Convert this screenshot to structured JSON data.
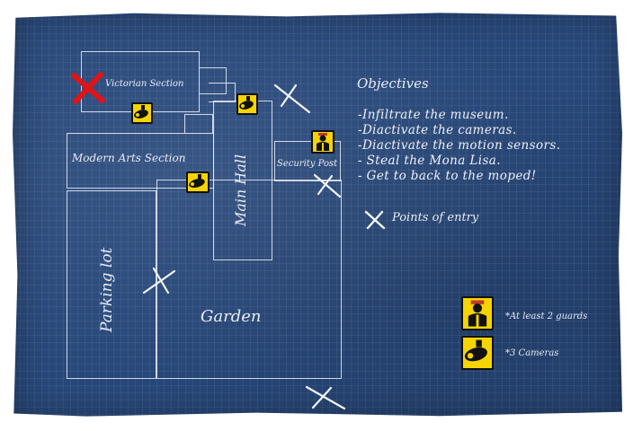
{
  "map": {
    "rooms": {
      "victorian": "Victorian Section",
      "modern": "Modern Arts Section",
      "main_hall": "Main Hall",
      "security": "Security Post",
      "parking": "Parking lot",
      "garden": "Garden"
    },
    "objectives": {
      "title": "Objectives",
      "items": [
        "-Infiltrate the museum.",
        "-Diactivate the cameras.",
        "-Diactivate the motion sensors.",
        "- Steal the Mona Lisa.",
        "- Get to back to the moped!"
      ]
    },
    "legend": {
      "entry": "Points of entry",
      "guards": "*At least 2 guards",
      "cameras": "*3 Cameras"
    },
    "colors": {
      "paper": "#28487a",
      "line": "#e8ecf4",
      "icon_yellow": "#f5d400",
      "target_red": "#e01414"
    },
    "icons": [
      "camera-icon",
      "guard-icon",
      "entry-x-icon",
      "target-x-icon"
    ]
  }
}
